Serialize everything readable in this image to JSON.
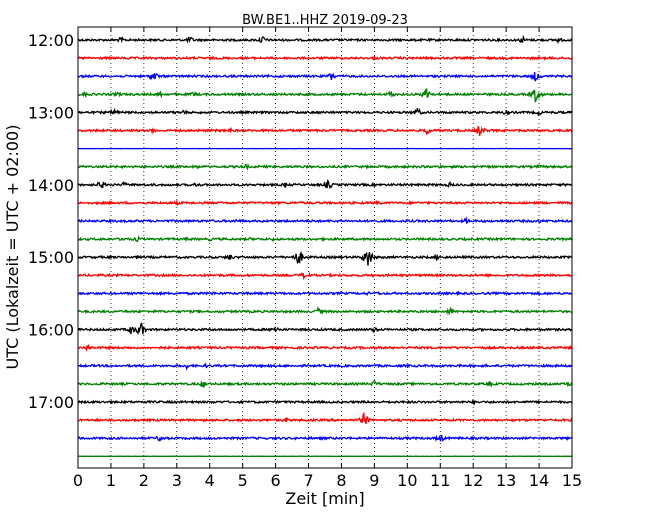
{
  "chart_data": {
    "type": "line",
    "title": "BW.BE1..HHZ 2019-09-23",
    "xlabel": "Zeit  [min]",
    "ylabel": "UTC (Lokalzeit = UTC + 02:00)",
    "xlim": [
      0,
      15
    ],
    "x_ticks": [
      "0",
      "1",
      "2",
      "3",
      "4",
      "5",
      "6",
      "7",
      "8",
      "9",
      "10",
      "11",
      "12",
      "13",
      "14",
      "15"
    ],
    "y_ticks": [
      {
        "label": "12:00",
        "row": 0
      },
      {
        "label": "13:00",
        "row": 4
      },
      {
        "label": "14:00",
        "row": 8
      },
      {
        "label": "15:00",
        "row": 12
      },
      {
        "label": "16:00",
        "row": 16
      },
      {
        "label": "17:00",
        "row": 20
      }
    ],
    "grid": {
      "x": "dotted-vertical",
      "y": "none"
    },
    "trace_colors": [
      "#000000",
      "#ff0000",
      "#0000ff",
      "#008000"
    ],
    "rows_per_hour": 4,
    "minutes_per_row": 15,
    "series": [
      {
        "start": "12:00",
        "events": [
          {
            "t": 1.3,
            "amp": 3
          },
          {
            "t": 3.4,
            "amp": 4
          },
          {
            "t": 5.6,
            "amp": 5
          },
          {
            "t": 13.5,
            "amp": 4
          },
          {
            "t": 14.6,
            "amp": 3
          }
        ]
      },
      {
        "start": "12:15",
        "events": [
          {
            "t": 1.5,
            "amp": 2
          },
          {
            "t": 9.0,
            "amp": 2
          }
        ]
      },
      {
        "start": "12:30",
        "events": [
          {
            "t": 2.3,
            "amp": 6
          },
          {
            "t": 7.7,
            "amp": 5
          },
          {
            "t": 13.9,
            "amp": 6
          }
        ]
      },
      {
        "start": "12:45",
        "events": [
          {
            "t": 0.2,
            "amp": 3
          },
          {
            "t": 1.2,
            "amp": 3
          },
          {
            "t": 2.5,
            "amp": 3
          },
          {
            "t": 3.5,
            "amp": 3
          },
          {
            "t": 9.5,
            "amp": 4
          },
          {
            "t": 10.6,
            "amp": 8
          },
          {
            "t": 13.9,
            "amp": 9
          }
        ]
      },
      {
        "start": "13:00",
        "events": [
          {
            "t": 1.1,
            "amp": 4
          },
          {
            "t": 3.2,
            "amp": 3
          },
          {
            "t": 10.3,
            "amp": 5
          },
          {
            "t": 13.0,
            "amp": 3
          },
          {
            "t": 14.0,
            "amp": 3
          }
        ]
      },
      {
        "start": "13:15",
        "events": [
          {
            "t": 2.3,
            "amp": 3
          },
          {
            "t": 4.6,
            "amp": 3
          },
          {
            "t": 10.6,
            "amp": 4
          },
          {
            "t": 12.2,
            "amp": 6
          }
        ]
      },
      {
        "start": "13:30",
        "events": []
      },
      {
        "start": "13:45",
        "events": [
          {
            "t": 3.6,
            "amp": 2
          },
          {
            "t": 5.1,
            "amp": 3
          },
          {
            "t": 11.0,
            "amp": 2
          },
          {
            "t": 14.0,
            "amp": 2
          }
        ]
      },
      {
        "start": "14:00",
        "events": [
          {
            "t": 0.7,
            "amp": 5
          },
          {
            "t": 1.4,
            "amp": 3
          },
          {
            "t": 3.6,
            "amp": 3
          },
          {
            "t": 6.3,
            "amp": 3
          },
          {
            "t": 7.6,
            "amp": 5
          },
          {
            "t": 11.3,
            "amp": 3
          }
        ]
      },
      {
        "start": "14:15",
        "events": [
          {
            "t": 3.0,
            "amp": 2
          },
          {
            "t": 9.1,
            "amp": 3
          }
        ]
      },
      {
        "start": "14:30",
        "events": [
          {
            "t": 4.8,
            "amp": 2
          },
          {
            "t": 7.2,
            "amp": 2
          },
          {
            "t": 11.8,
            "amp": 3
          },
          {
            "t": 14.0,
            "amp": 2
          }
        ]
      },
      {
        "start": "14:45",
        "events": [
          {
            "t": 1.4,
            "amp": 3
          },
          {
            "t": 1.8,
            "amp": 3
          },
          {
            "t": 3.3,
            "amp": 2
          },
          {
            "t": 4.0,
            "amp": 2
          },
          {
            "t": 5.2,
            "amp": 2
          },
          {
            "t": 5.9,
            "amp": 2
          }
        ]
      },
      {
        "start": "15:00",
        "events": [
          {
            "t": 4.6,
            "amp": 4
          },
          {
            "t": 6.7,
            "amp": 9
          },
          {
            "t": 8.8,
            "amp": 12
          },
          {
            "t": 10.9,
            "amp": 3
          }
        ]
      },
      {
        "start": "15:15",
        "events": [
          {
            "t": 6.9,
            "amp": 5
          }
        ]
      },
      {
        "start": "15:30",
        "events": [
          {
            "t": 4.1,
            "amp": 2
          },
          {
            "t": 8.8,
            "amp": 2
          },
          {
            "t": 9.1,
            "amp": 2
          }
        ]
      },
      {
        "start": "15:45",
        "events": [
          {
            "t": 7.3,
            "amp": 4
          },
          {
            "t": 11.3,
            "amp": 4
          }
        ]
      },
      {
        "start": "16:00",
        "events": [
          {
            "t": 1.6,
            "amp": 5
          },
          {
            "t": 1.9,
            "amp": 9
          },
          {
            "t": 6.0,
            "amp": 4
          },
          {
            "t": 9.0,
            "amp": 3
          }
        ]
      },
      {
        "start": "16:15",
        "events": [
          {
            "t": 0.3,
            "amp": 4
          }
        ]
      },
      {
        "start": "16:30",
        "events": [
          {
            "t": 3.3,
            "amp": 3
          },
          {
            "t": 3.9,
            "amp": 2
          }
        ]
      },
      {
        "start": "16:45",
        "events": [
          {
            "t": 3.8,
            "amp": 4
          },
          {
            "t": 9.0,
            "amp": 4
          },
          {
            "t": 12.5,
            "amp": 3
          },
          {
            "t": 14.9,
            "amp": 3
          }
        ]
      },
      {
        "start": "17:00",
        "events": [
          {
            "t": 12.0,
            "amp": 2
          }
        ]
      },
      {
        "start": "17:15",
        "events": [
          {
            "t": 6.3,
            "amp": 3
          },
          {
            "t": 8.7,
            "amp": 8
          }
        ]
      },
      {
        "start": "17:30",
        "events": [
          {
            "t": 2.5,
            "amp": 4
          },
          {
            "t": 11.0,
            "amp": 5
          }
        ]
      },
      {
        "start": "17:45",
        "events": []
      }
    ]
  }
}
